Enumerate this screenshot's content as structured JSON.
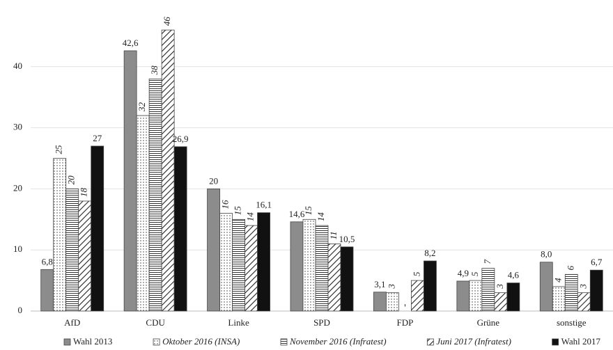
{
  "chart_data": {
    "type": "bar",
    "categories": [
      "AfD",
      "CDU",
      "Linke",
      "SPD",
      "FDP",
      "Grüne",
      "sonstige"
    ],
    "series": [
      {
        "name": "Wahl 2013",
        "color": "#8c8c8c",
        "pattern": "solid",
        "font_style": "normal",
        "values": [
          6.8,
          42.6,
          20,
          14.6,
          3.1,
          4.9,
          8.0
        ],
        "value_labels": [
          "6,8",
          "42,6",
          "20",
          "14,6",
          "3,1",
          "4,9",
          "8,0"
        ]
      },
      {
        "name": "Oktober 2016 (INSA)",
        "color": "#ffffff",
        "pattern": "dots",
        "font_style": "italic",
        "values": [
          25,
          32,
          16,
          15,
          3,
          5,
          4
        ]
      },
      {
        "name": "November 2016 (Infratest)",
        "color": "#ffffff",
        "pattern": "hlines",
        "font_style": "italic",
        "values": [
          20,
          38,
          15,
          14,
          null,
          7,
          6
        ],
        "value_labels": [
          "20",
          "38",
          "15",
          "14",
          "-",
          "7",
          "6"
        ]
      },
      {
        "name": "Juni 2017 (Infratest)",
        "color": "#ffffff",
        "pattern": "diagonal",
        "font_style": "italic",
        "values": [
          18,
          46,
          14,
          11,
          5,
          3,
          3
        ]
      },
      {
        "name": "Wahl 2017",
        "color": "#111111",
        "pattern": "solid",
        "font_style": "normal",
        "values": [
          27,
          26.9,
          16.1,
          10.5,
          8.2,
          4.6,
          6.7
        ],
        "value_labels": [
          "27",
          "26,9",
          "16,1",
          "10,5",
          "8,2",
          "4,6",
          "6,7"
        ]
      }
    ],
    "ylim": [
      0,
      50
    ],
    "yticks": [
      0,
      10,
      20,
      30,
      40
    ],
    "grid": true
  }
}
